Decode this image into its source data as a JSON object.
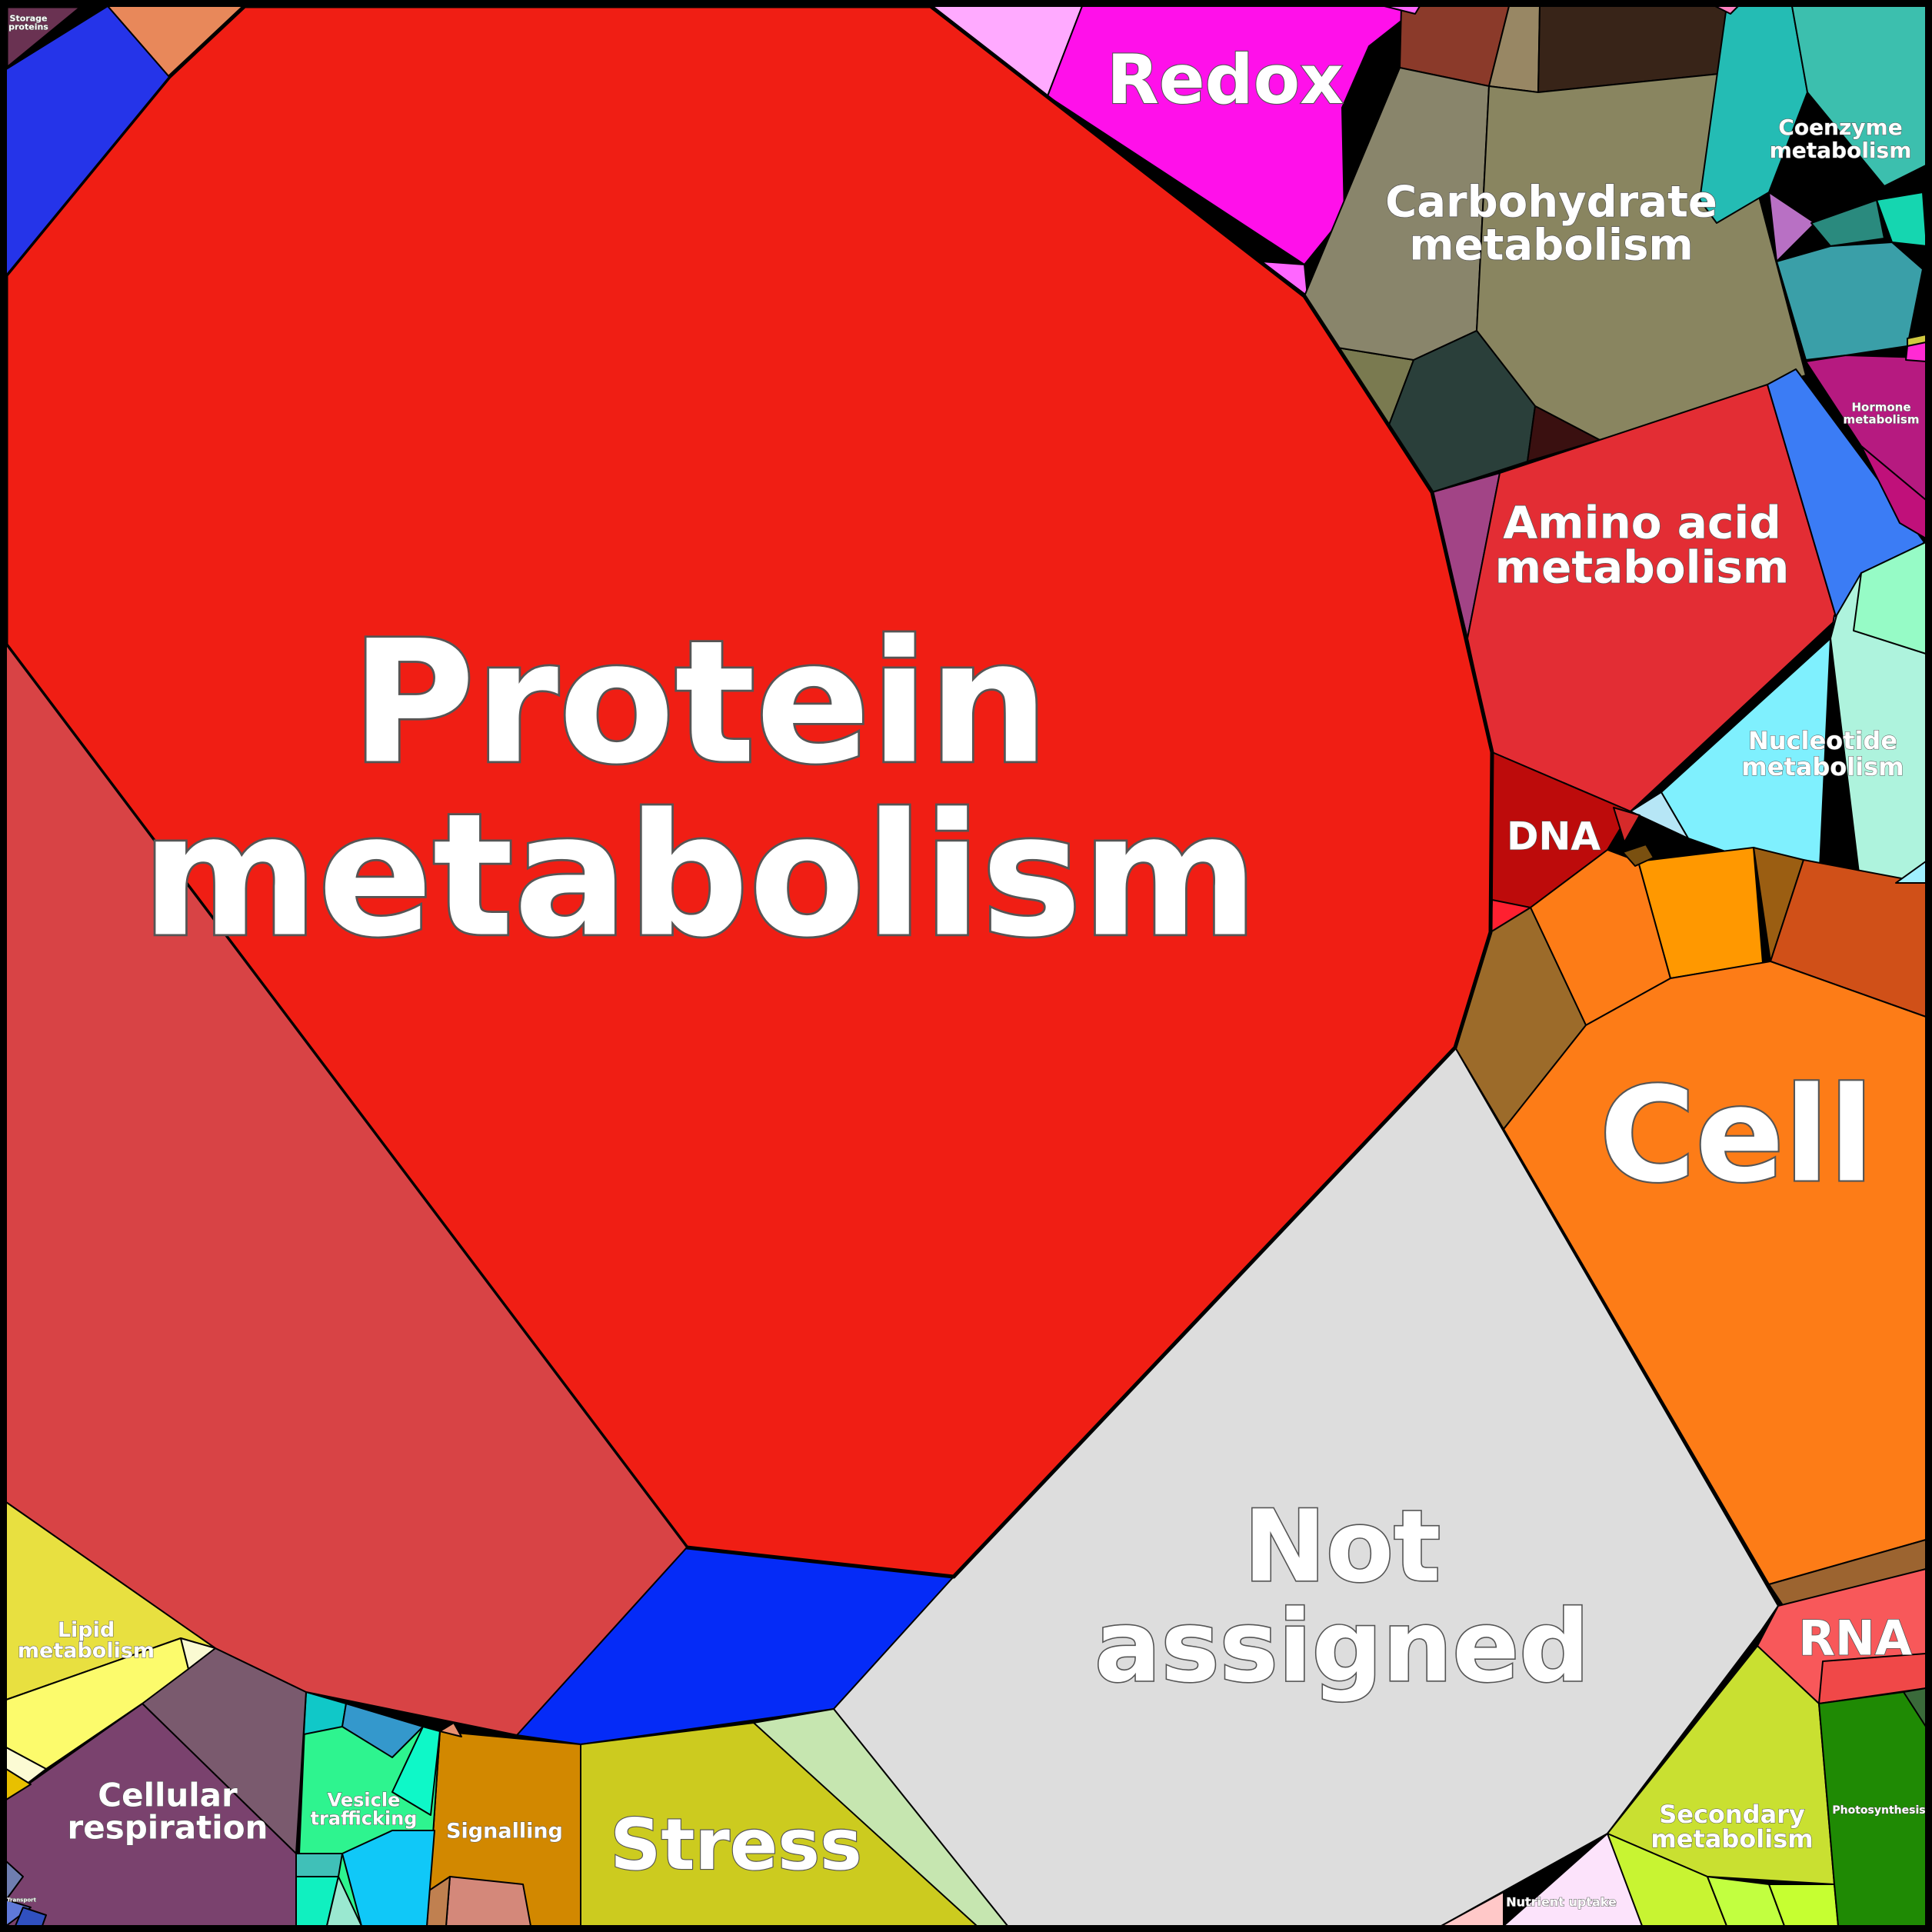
{
  "diagram": {
    "type": "voronoi-treemap",
    "categories": [
      {
        "id": "protein",
        "label": "Protein\nmetabolism",
        "color": "#f01e14"
      },
      {
        "id": "not-assigned",
        "label": "Not\nassigned",
        "color": "#dddddd"
      },
      {
        "id": "cell",
        "label": "Cell",
        "color": "#fd7c17"
      },
      {
        "id": "redox",
        "label": "Redox",
        "color": "#ff10ea"
      },
      {
        "id": "carbohydrate",
        "label": "Carbohydrate\nmetabolism",
        "color": "#89845f"
      },
      {
        "id": "amino-acid",
        "label": "Amino acid\nmetabolism",
        "color": "#e32d34"
      },
      {
        "id": "nucleotide",
        "label": "Nucleotide\nmetabolism",
        "color": "#7ff0fe"
      },
      {
        "id": "coenzyme",
        "label": "Coenzyme\nmetabolism",
        "color": "#24bcb4"
      },
      {
        "id": "hormone",
        "label": "Hormone\nmetabolism",
        "color": "#b61a80"
      },
      {
        "id": "dna",
        "label": "DNA",
        "color": "#bd0b0b"
      },
      {
        "id": "rna",
        "label": "RNA",
        "color": "#f8585a"
      },
      {
        "id": "stress",
        "label": "Stress",
        "color": "#cccb1f"
      },
      {
        "id": "signalling",
        "label": "Signalling",
        "color": "#d28800"
      },
      {
        "id": "vesicle-trafficking",
        "label": "Vesicle\ntrafficking",
        "color": "#2ef48f"
      },
      {
        "id": "cellular-respiration",
        "label": "Cellular\nrespiration",
        "color": "#7a426e"
      },
      {
        "id": "lipid",
        "label": "Lipid\nmetabolism",
        "color": "#fcfb6c"
      },
      {
        "id": "secondary",
        "label": "Secondary\nmetabolism",
        "color": "#c9e031"
      },
      {
        "id": "photosynthesis",
        "label": "Photosynthesis",
        "color": "#1f8a04"
      },
      {
        "id": "nutrient-uptake",
        "label": "Nutrient uptake",
        "color": "#fce3fb"
      },
      {
        "id": "storage-proteins",
        "label": "Storage\nproteins",
        "color": "#6a3252"
      },
      {
        "id": "transport",
        "label": "Transport",
        "color": "#5f79d9"
      }
    ]
  }
}
